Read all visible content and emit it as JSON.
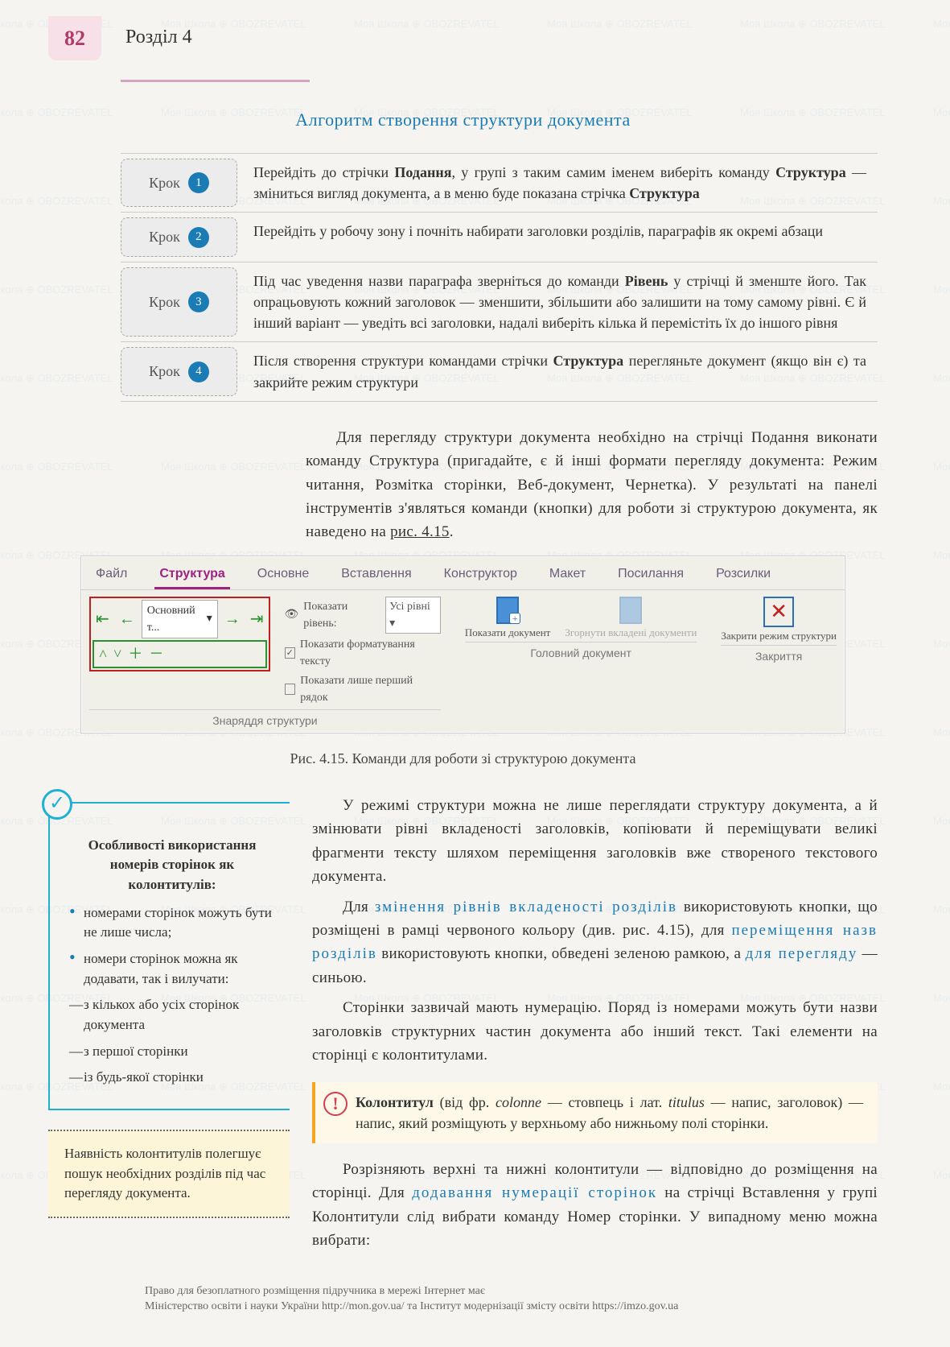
{
  "page_number": "82",
  "section": "Розділ 4",
  "algo_title": "Алгоритм створення структури документа",
  "step_word": "Крок",
  "steps": [
    {
      "n": "1",
      "text": "Перейдіть до стрічки <b>Подання</b>, у групі з таким самим іменем виберіть команду <b>Структура</b> — зміниться вигляд документа, а в меню буде показана стрічка <b>Структура</b>"
    },
    {
      "n": "2",
      "text": "Перейдіть у робочу зону і почніть набирати заголовки розділів, параграфів як окремі абзаци"
    },
    {
      "n": "3",
      "text": "Під час уведення назви параграфа зверніться до команди <b>Рівень</b> у стрічці й зменште його. Так опрацьовують кожний заголовок — зменшити, збільшити або залишити на тому самому рівні. Є й інший варіант — уведіть всі заголовки, надалі виберіть кілька й перемістіть їх до іншого рівня"
    },
    {
      "n": "4",
      "text": "Після створення структури командами стрічки <b>Структура</b> перегляньте документ (якщо він є) та закрийте режим структури"
    }
  ],
  "para1": "Для перегляду структури документа необхідно на стрічці Подання виконати команду Структура (пригадайте, є й інші формати перегляду документа: Режим читання, Розмітка сторінки, Веб-документ, Чернетка). У результаті на панелі інструментів з'являться команди (кнопки) для роботи зі структурою документа, як наведено на <u class=\"rule\">рис. 4.15</u>.",
  "ribbon": {
    "tabs": [
      "Файл",
      "Структура",
      "Основне",
      "Вставлення",
      "Конструктор",
      "Макет",
      "Посилання",
      "Розсилки"
    ],
    "active_tab": "Структура",
    "level_text": "Основний т...",
    "opt_level_label": "Показати рівень:",
    "opt_level_value": "Усі рівні",
    "opt_format": "Показати форматування тексту",
    "opt_first": "Показати лише перший рядок",
    "group1": "Знаряддя структури",
    "show_doc": "Показати документ",
    "collapse": "Згорнути вкладені документи",
    "group2": "Головний документ",
    "close": "Закрити режим структури",
    "group3": "Закриття"
  },
  "fig_caption": "Рис. 4.15. Команди для роботи зі структурою документа",
  "side": {
    "title": "Особливості використання номерів сторінок як колонтитулів:",
    "items": [
      {
        "cls": "bullet",
        "text": "номерами сторінок можуть бути не лише числа;"
      },
      {
        "cls": "bullet",
        "text": "номери сторінок можна як додавати, так і вилучати:"
      },
      {
        "cls": "dash",
        "text": "з кількох або усіх сторінок документа"
      },
      {
        "cls": "dash",
        "text": "з першої сторінки"
      },
      {
        "cls": "dash",
        "text": "із будь-якої сторінки"
      }
    ],
    "yellow": "Наявність колонтитулів полегшує пошук необхідних розділів під час перегляду документа."
  },
  "main": {
    "p1": "У режимі структури можна не лише переглядати структуру документа, а й змінювати рівні вкладеності заголовків, копіювати й переміщувати великі фрагменти тексту шляхом переміщення заголовків вже створеного текстового документа.",
    "p2": "Для <span class=\"link-blue\">змінення рівнів вкладеності розділів</span> використовують кнопки, що розміщені в рамці червоного кольору (див. рис. 4.15), для <span class=\"link-blue\">переміщення назв розділів</span> використовують кнопки, обведені зеленою рамкою, а <span class=\"link-blue\">для перегляду</span> — синьою.",
    "p3": "Сторінки зазвичай мають нумерацію. Поряд із номерами можуть бути назви заголовків структурних частин документа або інший текст. Такі елементи на сторінці є колонтитулами.",
    "def": "<b>Колонтитул</b> (від фр. <i>colonne</i> — стовпець і лат. <i>titulus</i> — напис, заголовок) — напис, який розміщують у верхньому або нижньому полі сторінки.",
    "p4": "Розрізняють верхні та нижні колонтитули — відповідно до розміщення на сторінці. Для <span class=\"link-blue\">додавання нумерації сторінок</span> на стрічці Вставлення у групі Колонтитули слід вибрати команду Номер сторінки. У випадному меню можна вибрати:"
  },
  "footer": {
    "l1": "Право для безоплатного розміщення підручника в мережі Інтернет має",
    "l2": "Міністерство освіти і науки України http://mon.gov.ua/ та Інститут модернізації змісту освіти https://imzo.gov.ua"
  },
  "watermark_text": "Моя Школа ⊕ OBOZREVATEL"
}
